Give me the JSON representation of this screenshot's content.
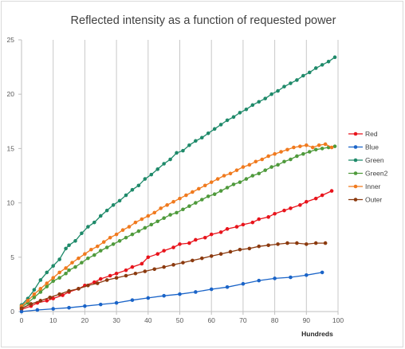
{
  "chart_data": {
    "type": "line",
    "title": "Reflected intensity as a function of requested power",
    "xlabel": "Hundreds",
    "ylabel": "",
    "xlim": [
      0,
      100
    ],
    "ylim": [
      0,
      25
    ],
    "x_ticks": [
      0,
      10,
      20,
      30,
      40,
      50,
      60,
      70,
      80,
      90,
      100
    ],
    "y_ticks": [
      0,
      5,
      10,
      15,
      20,
      25
    ],
    "grid": "vertical",
    "legend_position": "right",
    "series": [
      {
        "name": "Red",
        "color": "#e8141c",
        "x": [
          0,
          3,
          5,
          8,
          10,
          13,
          15,
          18,
          20,
          23,
          25,
          28,
          30,
          33,
          35,
          38,
          40,
          43,
          45,
          48,
          50,
          53,
          55,
          58,
          60,
          63,
          65,
          68,
          70,
          73,
          75,
          78,
          80,
          83,
          85,
          88,
          90,
          93,
          95,
          98
        ],
        "y": [
          0.2,
          0.5,
          0.8,
          1.0,
          1.2,
          1.5,
          1.8,
          2.1,
          2.4,
          2.7,
          3.0,
          3.3,
          3.5,
          3.8,
          4.1,
          4.4,
          5.0,
          5.3,
          5.6,
          5.9,
          6.2,
          6.3,
          6.6,
          6.8,
          7.1,
          7.3,
          7.6,
          7.8,
          8.0,
          8.2,
          8.5,
          8.7,
          9.0,
          9.3,
          9.5,
          9.8,
          10.1,
          10.4,
          10.7,
          11.1
        ]
      },
      {
        "name": "Blue",
        "color": "#1a64c8",
        "x": [
          0,
          5,
          10,
          15,
          20,
          25,
          30,
          35,
          40,
          45,
          50,
          55,
          60,
          65,
          70,
          75,
          80,
          85,
          90,
          95
        ],
        "y": [
          0.0,
          0.15,
          0.25,
          0.35,
          0.5,
          0.65,
          0.8,
          1.05,
          1.25,
          1.45,
          1.6,
          1.8,
          2.05,
          2.25,
          2.55,
          2.85,
          3.05,
          3.15,
          3.35,
          3.6
        ]
      },
      {
        "name": "Green",
        "color": "#1f8a6a",
        "x": [
          0,
          2,
          4,
          6,
          8,
          10,
          12,
          14,
          15,
          17,
          19,
          21,
          23,
          25,
          27,
          29,
          31,
          33,
          35,
          37,
          39,
          41,
          43,
          45,
          47,
          49,
          51,
          53,
          55,
          57,
          59,
          61,
          63,
          65,
          67,
          69,
          71,
          73,
          75,
          77,
          79,
          81,
          83,
          85,
          87,
          89,
          91,
          93,
          95,
          97,
          99
        ],
        "y": [
          0.6,
          1.2,
          2.0,
          2.9,
          3.6,
          4.2,
          4.8,
          5.8,
          6.1,
          6.5,
          7.2,
          7.8,
          8.2,
          8.8,
          9.3,
          9.8,
          10.2,
          10.7,
          11.2,
          11.6,
          12.2,
          12.6,
          13.1,
          13.6,
          14.0,
          14.6,
          14.8,
          15.3,
          15.7,
          16.0,
          16.4,
          16.8,
          17.2,
          17.6,
          17.9,
          18.3,
          18.6,
          19.0,
          19.3,
          19.6,
          20.0,
          20.3,
          20.7,
          21.0,
          21.3,
          21.7,
          22.0,
          22.4,
          22.7,
          23.0,
          23.4
        ]
      },
      {
        "name": "Green2",
        "color": "#4f9a3c",
        "x": [
          0,
          2,
          4,
          6,
          8,
          10,
          12,
          14,
          15,
          17,
          19,
          21,
          23,
          25,
          27,
          29,
          31,
          33,
          35,
          37,
          39,
          41,
          43,
          45,
          47,
          49,
          51,
          53,
          55,
          57,
          59,
          61,
          63,
          65,
          67,
          69,
          71,
          73,
          75,
          77,
          79,
          81,
          83,
          85,
          87,
          89,
          91,
          93,
          95,
          97,
          99
        ],
        "y": [
          0.4,
          0.8,
          1.3,
          1.8,
          2.3,
          2.8,
          3.1,
          3.5,
          3.8,
          4.1,
          4.5,
          4.9,
          5.2,
          5.6,
          5.9,
          6.2,
          6.5,
          6.8,
          7.1,
          7.4,
          7.7,
          8.0,
          8.3,
          8.6,
          8.9,
          9.1,
          9.4,
          9.7,
          10.0,
          10.3,
          10.6,
          10.8,
          11.1,
          11.4,
          11.7,
          11.9,
          12.2,
          12.5,
          12.7,
          13.0,
          13.3,
          13.5,
          13.8,
          14.0,
          14.3,
          14.5,
          14.7,
          14.9,
          15.0,
          15.1,
          15.2
        ]
      },
      {
        "name": "Inner",
        "color": "#f07a1e",
        "x": [
          0,
          2,
          4,
          6,
          8,
          10,
          12,
          14,
          16,
          18,
          20,
          22,
          24,
          26,
          28,
          30,
          32,
          34,
          36,
          38,
          40,
          42,
          44,
          46,
          48,
          50,
          52,
          54,
          56,
          58,
          60,
          62,
          64,
          66,
          68,
          70,
          72,
          74,
          76,
          78,
          80,
          82,
          84,
          86,
          88,
          90,
          92,
          94,
          96,
          98
        ],
        "y": [
          0.5,
          1.0,
          1.6,
          2.1,
          2.6,
          3.1,
          3.6,
          4.0,
          4.5,
          4.9,
          5.3,
          5.7,
          6.0,
          6.4,
          6.8,
          7.1,
          7.5,
          7.8,
          8.2,
          8.5,
          8.8,
          9.1,
          9.5,
          9.8,
          10.1,
          10.4,
          10.7,
          11.0,
          11.3,
          11.6,
          11.9,
          12.2,
          12.5,
          12.7,
          13.0,
          13.3,
          13.5,
          13.8,
          14.0,
          14.3,
          14.5,
          14.7,
          14.9,
          15.1,
          15.2,
          15.3,
          15.1,
          15.3,
          15.4,
          15.1
        ]
      },
      {
        "name": "Outer",
        "color": "#8b3a0f",
        "x": [
          0,
          3,
          6,
          9,
          12,
          15,
          18,
          21,
          24,
          27,
          30,
          33,
          36,
          39,
          42,
          45,
          48,
          51,
          54,
          57,
          60,
          63,
          66,
          69,
          72,
          75,
          78,
          81,
          84,
          87,
          90,
          93,
          96
        ],
        "y": [
          0.3,
          0.7,
          1.0,
          1.3,
          1.6,
          1.9,
          2.1,
          2.4,
          2.6,
          2.9,
          3.1,
          3.3,
          3.5,
          3.7,
          3.9,
          4.1,
          4.3,
          4.5,
          4.7,
          4.9,
          5.1,
          5.3,
          5.5,
          5.7,
          5.8,
          6.0,
          6.1,
          6.2,
          6.3,
          6.3,
          6.2,
          6.3,
          6.3
        ]
      }
    ]
  }
}
